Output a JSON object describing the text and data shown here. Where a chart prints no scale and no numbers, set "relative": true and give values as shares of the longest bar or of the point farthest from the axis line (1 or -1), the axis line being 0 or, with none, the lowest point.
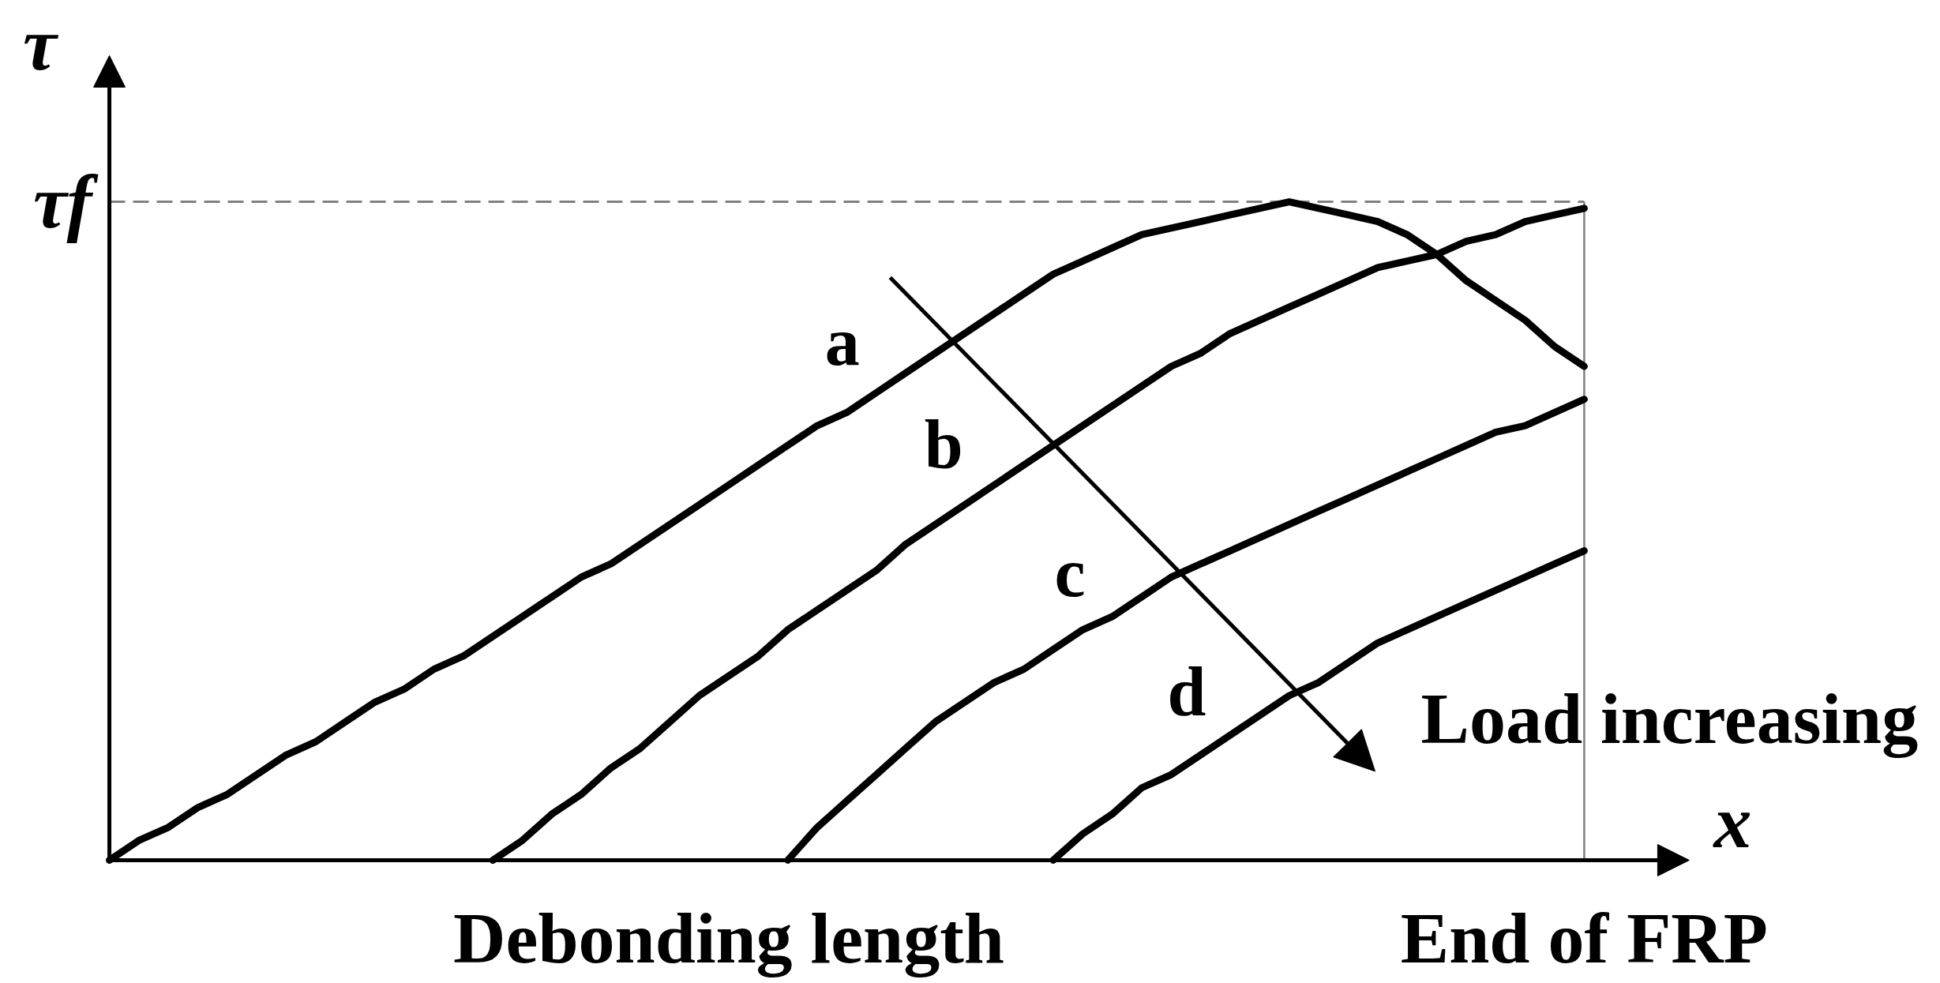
{
  "chart_data": {
    "type": "line",
    "relative": true,
    "xlabel": "x",
    "ylabel": "τ",
    "categories": [
      null,
      null,
      null,
      null,
      null,
      null,
      null,
      null,
      null,
      null,
      null,
      null,
      null,
      null,
      null,
      null,
      null,
      null,
      null,
      null,
      null,
      "Debonding length",
      null,
      null,
      null,
      null,
      null,
      null,
      null,
      null,
      null,
      null,
      null,
      null,
      null,
      null,
      null,
      null,
      null,
      null,
      null,
      null,
      null,
      null,
      null,
      null,
      null,
      null,
      null,
      null,
      "End of FRP"
    ],
    "series": [
      {
        "name": "a",
        "color": "#000000",
        "values": [
          0,
          0.03,
          0.05,
          0.08,
          0.1,
          0.13,
          0.16,
          0.18,
          0.21,
          0.24,
          0.26,
          0.29,
          0.31,
          0.34,
          0.37,
          0.4,
          0.43,
          0.45,
          0.48,
          0.51,
          0.54,
          0.57,
          0.6,
          0.63,
          0.66,
          0.68,
          0.71,
          0.74,
          0.77,
          0.8,
          0.83,
          0.86,
          0.89,
          0.91,
          0.93,
          0.95,
          0.96,
          0.97,
          0.98,
          0.99,
          1.0,
          0.99,
          0.98,
          0.97,
          0.95,
          0.92,
          0.88,
          0.85,
          0.82,
          0.78,
          0.75
        ]
      },
      {
        "name": "b",
        "color": "#000000",
        "values": [
          null,
          null,
          null,
          null,
          null,
          null,
          null,
          null,
          null,
          null,
          null,
          null,
          null,
          0,
          0.03,
          0.07,
          0.1,
          0.14,
          0.17,
          0.21,
          0.25,
          0.28,
          0.31,
          0.35,
          0.38,
          0.41,
          0.44,
          0.48,
          0.51,
          0.54,
          0.57,
          0.6,
          0.63,
          0.66,
          0.69,
          0.72,
          0.75,
          0.77,
          0.8,
          0.82,
          0.84,
          0.86,
          0.88,
          0.9,
          0.91,
          0.92,
          0.94,
          0.95,
          0.97,
          0.98,
          0.99
        ]
      },
      {
        "name": "c",
        "color": "#000000",
        "values": [
          null,
          null,
          null,
          null,
          null,
          null,
          null,
          null,
          null,
          null,
          null,
          null,
          null,
          null,
          null,
          null,
          null,
          null,
          null,
          null,
          null,
          null,
          null,
          0,
          0.05,
          0.09,
          0.13,
          0.17,
          0.21,
          0.24,
          0.27,
          0.29,
          0.32,
          0.35,
          0.37,
          0.4,
          0.43,
          0.45,
          0.47,
          0.49,
          0.51,
          0.53,
          0.55,
          0.57,
          0.59,
          0.61,
          0.63,
          0.65,
          0.66,
          0.68,
          0.7
        ]
      },
      {
        "name": "d",
        "color": "#000000",
        "values": [
          null,
          null,
          null,
          null,
          null,
          null,
          null,
          null,
          null,
          null,
          null,
          null,
          null,
          null,
          null,
          null,
          null,
          null,
          null,
          null,
          null,
          null,
          null,
          null,
          null,
          null,
          null,
          null,
          null,
          null,
          null,
          null,
          0,
          0.04,
          0.07,
          0.11,
          0.13,
          0.16,
          0.19,
          0.22,
          0.25,
          0.27,
          0.3,
          0.33,
          0.35,
          0.37,
          0.39,
          0.41,
          0.43,
          0.45,
          0.47
        ]
      }
    ],
    "ref_lines": [
      {
        "axis": "y",
        "value": 1,
        "label": "τf",
        "color": "#808080",
        "line_style": "dashed"
      },
      {
        "axis": "x",
        "value": "End of FRP",
        "color": "#808080"
      }
    ],
    "annotations": [
      "Load increasing"
    ],
    "grid": false,
    "line_style": "solid"
  }
}
